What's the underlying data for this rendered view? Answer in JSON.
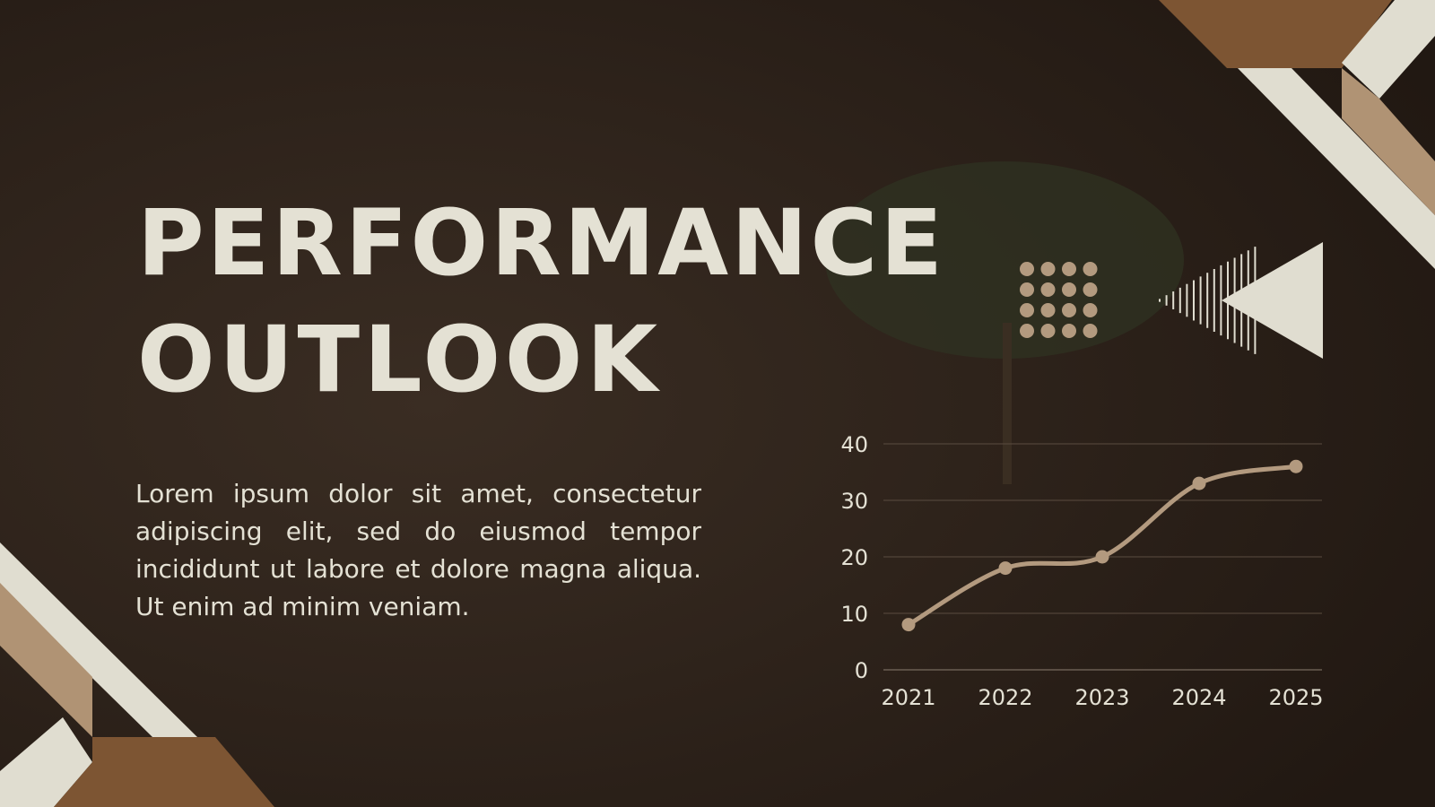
{
  "title": [
    "PERFORMANCE",
    "OUTLOOK"
  ],
  "body": "Lorem ipsum dolor sit amet, consectetur adipiscing elit, sed do eiusmod tempor incididunt ut labore et dolore magna aliqua. Ut enim ad minim veniam.",
  "chart_data": {
    "type": "line",
    "categories": [
      "2021",
      "2022",
      "2023",
      "2024",
      "2025"
    ],
    "series": [
      {
        "color": "#b39a7f",
        "values": [
          8,
          18,
          20,
          33,
          36
        ]
      }
    ],
    "ylim": [
      0,
      40
    ],
    "yticks": [
      0,
      10,
      20,
      30,
      40
    ],
    "grid": true
  }
}
